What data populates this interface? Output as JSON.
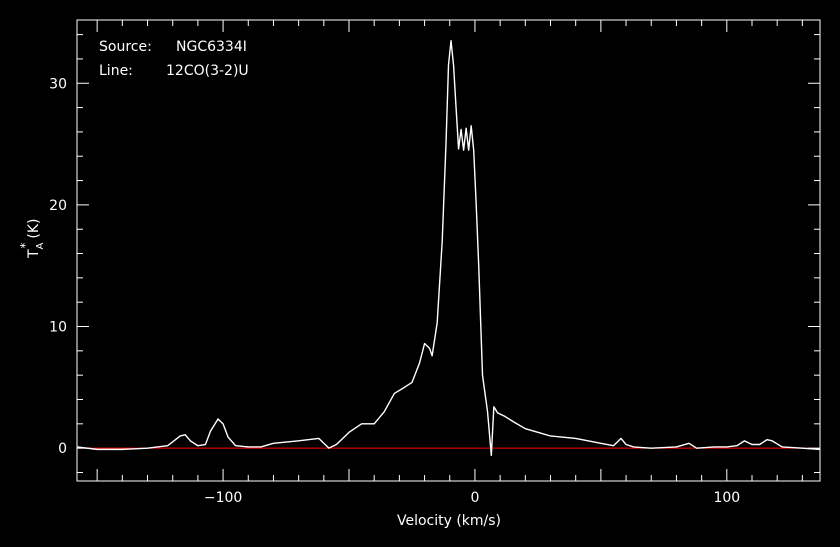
{
  "chart_data": {
    "type": "line",
    "annotation": {
      "source_label": "Source:",
      "source_value": "NGC6334I",
      "line_label": "Line:",
      "line_value": "12CO(3-2)U"
    },
    "xlabel": "Velocity (km/s)",
    "ylabel_main": "T",
    "ylabel_sub": "A",
    "ylabel_sup": "*",
    "ylabel_unit": "(K)",
    "xlim": [
      -158,
      137
    ],
    "ylim": [
      -2.7,
      35.2
    ],
    "x_ticks": [
      -100,
      0,
      100
    ],
    "x_tick_labels": [
      "−100",
      "0",
      "100"
    ],
    "y_ticks": [
      0,
      10,
      20,
      30
    ],
    "y_tick_labels": [
      "0",
      "10",
      "20",
      "30"
    ],
    "colors": {
      "background": "#000000",
      "axes": "#ffffff",
      "spectrum": "#ffffff",
      "baseline": "#ff0000"
    },
    "baseline_value": 0,
    "series": [
      {
        "points": [
          [
            -158,
            0.1
          ],
          [
            -150,
            -0.1
          ],
          [
            -140,
            -0.1
          ],
          [
            -130,
            0.0
          ],
          [
            -122,
            0.2
          ],
          [
            -117,
            1.0
          ],
          [
            -115,
            1.1
          ],
          [
            -113,
            0.6
          ],
          [
            -110,
            0.2
          ],
          [
            -107,
            0.3
          ],
          [
            -105,
            1.4
          ],
          [
            -102,
            2.4
          ],
          [
            -100,
            2.0
          ],
          [
            -98,
            0.9
          ],
          [
            -95,
            0.2
          ],
          [
            -90,
            0.1
          ],
          [
            -85,
            0.1
          ],
          [
            -80,
            0.4
          ],
          [
            -70,
            0.6
          ],
          [
            -62,
            0.8
          ],
          [
            -58,
            0.0
          ],
          [
            -55,
            0.3
          ],
          [
            -50,
            1.3
          ],
          [
            -45,
            2.0
          ],
          [
            -40,
            2.0
          ],
          [
            -36,
            3.0
          ],
          [
            -32,
            4.5
          ],
          [
            -28,
            5.0
          ],
          [
            -25,
            5.4
          ],
          [
            -22,
            7.0
          ],
          [
            -20,
            8.6
          ],
          [
            -18,
            8.2
          ],
          [
            -17,
            7.6
          ],
          [
            -15,
            10.3
          ],
          [
            -13,
            17.0
          ],
          [
            -11.5,
            25.0
          ],
          [
            -10.5,
            31.5
          ],
          [
            -9.5,
            33.5
          ],
          [
            -8.5,
            31.5
          ],
          [
            -7.5,
            28.0
          ],
          [
            -6.5,
            24.6
          ],
          [
            -5.5,
            26.2
          ],
          [
            -4.5,
            24.5
          ],
          [
            -3.5,
            26.3
          ],
          [
            -2.5,
            24.5
          ],
          [
            -1.5,
            26.5
          ],
          [
            -0.5,
            24.5
          ],
          [
            0.5,
            20.0
          ],
          [
            1.5,
            15.0
          ],
          [
            3,
            6.0
          ],
          [
            5,
            3.0
          ],
          [
            6.5,
            -0.6
          ],
          [
            7.5,
            3.4
          ],
          [
            9,
            2.9
          ],
          [
            12,
            2.6
          ],
          [
            15,
            2.2
          ],
          [
            20,
            1.6
          ],
          [
            25,
            1.3
          ],
          [
            30,
            1.0
          ],
          [
            40,
            0.8
          ],
          [
            50,
            0.4
          ],
          [
            55,
            0.2
          ],
          [
            58,
            0.8
          ],
          [
            60,
            0.3
          ],
          [
            63,
            0.1
          ],
          [
            70,
            0.0
          ],
          [
            80,
            0.1
          ],
          [
            85,
            0.4
          ],
          [
            88,
            0.0
          ],
          [
            95,
            0.1
          ],
          [
            100,
            0.1
          ],
          [
            104,
            0.2
          ],
          [
            107,
            0.6
          ],
          [
            110,
            0.3
          ],
          [
            113,
            0.3
          ],
          [
            116,
            0.7
          ],
          [
            118,
            0.6
          ],
          [
            122,
            0.1
          ],
          [
            130,
            0.0
          ],
          [
            137,
            -0.1
          ]
        ]
      }
    ]
  }
}
